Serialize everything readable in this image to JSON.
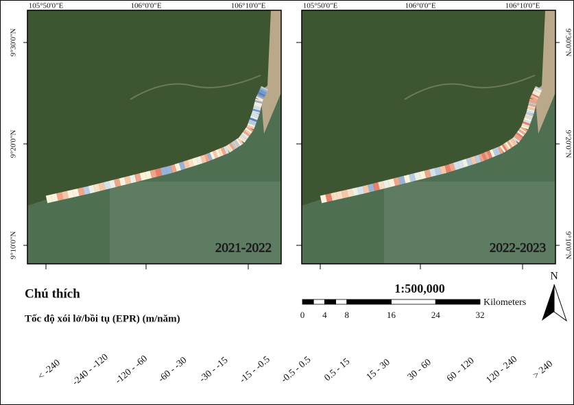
{
  "maps": [
    {
      "period": "2021-2022",
      "top_labels": [
        "105°50'0\"E",
        "106°0'0\"E",
        "106°10'0\"E"
      ],
      "side_labels": [
        "9°30'0\"N",
        "9°20'0\"N",
        "9°10'0\"N"
      ]
    },
    {
      "period": "2022-2023",
      "top_labels": [
        "105°50'0\"E",
        "106°0'0\"E",
        "106°10'0\"E"
      ],
      "side_labels": [
        "9°30'0\"N",
        "9°20'0\"N",
        "9°10'0\"N"
      ]
    }
  ],
  "legend": {
    "title": "Chú thích",
    "subtitle": "Tốc độ xói lở/bồi tụ (EPR) (m/năm)",
    "classes": [
      "< -240",
      "-240 - -120",
      "-120 - -60",
      "-60 - -30",
      "-30 - -15",
      "-15 - -0.5",
      "-0.5 - 0.5",
      "0.5 - 15",
      "15 - 30",
      "30 - 60",
      "60 - 120",
      "120 - 240",
      "> 240"
    ],
    "colors": [
      "#d7303a",
      "#e05a4a",
      "#e8806a",
      "#efa58a",
      "#f5c6a8",
      "#f9e0c4",
      "#fbf3dc",
      "#edf0e6",
      "#d6e2ea",
      "#b8cde2",
      "#97b3d8",
      "#7899cc",
      "#5a7fc0"
    ]
  },
  "scale": {
    "ratio": "1:500,000",
    "unit": "Kilometers",
    "ticks": [
      "0",
      "4",
      "8",
      "16",
      "24",
      "32"
    ]
  },
  "north": "N"
}
